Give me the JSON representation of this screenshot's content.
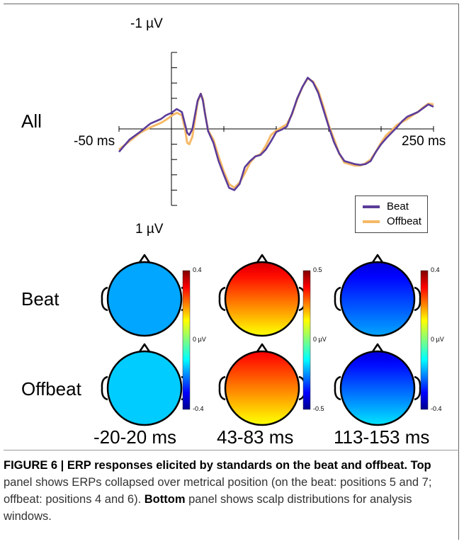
{
  "chart_data": {
    "type": "line",
    "panel_label": "All",
    "xlabels": {
      "min": "-50 ms",
      "max": "250 ms"
    },
    "ylabels": {
      "top": "-1 µV",
      "bottom": "1 µV"
    },
    "xlim": [
      -50,
      250
    ],
    "ylim": [
      -1,
      1
    ],
    "y_inverted": true,
    "legend_position": "bottom-right",
    "series": [
      {
        "name": "Beat",
        "color": "#5b3c99",
        "x": [
          -50,
          -40,
          -30,
          -20,
          -10,
          -5,
          0,
          5,
          10,
          13,
          15,
          17,
          20,
          25,
          28,
          30,
          32,
          35,
          40,
          45,
          50,
          55,
          60,
          65,
          70,
          75,
          80,
          85,
          90,
          95,
          100,
          105,
          110,
          115,
          120,
          125,
          130,
          135,
          140,
          145,
          150,
          155,
          160,
          165,
          170,
          175,
          180,
          185,
          190,
          195,
          200,
          205,
          210,
          215,
          220,
          225,
          230,
          235,
          240,
          245,
          250
        ],
        "y": [
          0.3,
          0.14,
          0.04,
          -0.07,
          -0.13,
          -0.18,
          -0.21,
          -0.26,
          -0.22,
          -0.06,
          0.05,
          0.08,
          0.0,
          -0.37,
          -0.46,
          -0.37,
          -0.2,
          0.03,
          0.18,
          0.42,
          0.6,
          0.77,
          0.8,
          0.72,
          0.5,
          0.42,
          0.36,
          0.34,
          0.27,
          0.16,
          0.04,
          0.01,
          -0.03,
          -0.2,
          -0.4,
          -0.55,
          -0.67,
          -0.61,
          -0.47,
          -0.25,
          -0.03,
          0.17,
          0.32,
          0.42,
          0.44,
          0.46,
          0.47,
          0.46,
          0.42,
          0.3,
          0.2,
          0.12,
          0.05,
          -0.02,
          -0.1,
          -0.16,
          -0.19,
          -0.22,
          -0.27,
          -0.32,
          -0.29
        ]
      },
      {
        "name": "Offbeat",
        "color": "#f6b967",
        "x": [
          -50,
          -40,
          -30,
          -20,
          -10,
          -5,
          0,
          5,
          10,
          13,
          15,
          17,
          20,
          25,
          28,
          30,
          32,
          35,
          40,
          45,
          50,
          55,
          60,
          65,
          70,
          75,
          80,
          85,
          90,
          95,
          100,
          105,
          110,
          115,
          120,
          125,
          130,
          135,
          140,
          145,
          150,
          155,
          160,
          165,
          170,
          175,
          180,
          185,
          190,
          195,
          200,
          205,
          210,
          215,
          220,
          225,
          230,
          235,
          240,
          245,
          250
        ],
        "y": [
          0.27,
          0.16,
          0.05,
          -0.02,
          -0.08,
          -0.12,
          -0.17,
          -0.21,
          -0.18,
          0.0,
          0.18,
          0.2,
          0.1,
          -0.35,
          -0.46,
          -0.39,
          -0.2,
          0.02,
          0.14,
          0.36,
          0.56,
          0.72,
          0.77,
          0.7,
          0.58,
          0.44,
          0.36,
          0.33,
          0.22,
          0.08,
          0.02,
          -0.02,
          -0.06,
          -0.19,
          -0.39,
          -0.55,
          -0.66,
          -0.62,
          -0.5,
          -0.29,
          -0.05,
          0.13,
          0.32,
          0.44,
          0.46,
          0.48,
          0.48,
          0.45,
          0.4,
          0.3,
          0.18,
          0.08,
          0.02,
          -0.05,
          -0.09,
          -0.13,
          -0.18,
          -0.22,
          -0.28,
          -0.33,
          -0.32
        ]
      }
    ]
  },
  "topomaps": {
    "row_labels": [
      "Beat",
      "Offbeat"
    ],
    "window_labels": [
      "-20-20 ms",
      "43-83 ms",
      "113-153 ms"
    ],
    "colorbars": [
      {
        "max": "0.4",
        "mid": "0 µV",
        "min": "-0.4"
      },
      {
        "max": "0.5",
        "mid": "0 µV",
        "min": "-0.5"
      },
      {
        "max": "0.4",
        "mid": "0 µV",
        "min": "-0.4"
      }
    ],
    "maps": [
      {
        "row": "Beat",
        "window": "-20-20 ms",
        "front_level": -0.17,
        "back_level": -0.17
      },
      {
        "row": "Beat",
        "window": "43-83 ms",
        "front_level": 0.42,
        "back_level": 0.12
      },
      {
        "row": "Beat",
        "window": "113-153 ms",
        "front_level": -0.33,
        "back_level": -0.17
      },
      {
        "row": "Offbeat",
        "window": "-20-20 ms",
        "front_level": -0.14,
        "back_level": -0.14
      },
      {
        "row": "Offbeat",
        "window": "43-83 ms",
        "front_level": 0.38,
        "back_level": 0.12
      },
      {
        "row": "Offbeat",
        "window": "113-153 ms",
        "front_level": -0.33,
        "back_level": -0.12
      }
    ]
  },
  "caption": {
    "label": "FIGURE 6 | ERP responses elicited by standards on the beat and offbeat.",
    "top_word": "Top",
    "top_text": " panel shows ERPs collapsed over metrical position (on the beat: positions 5 and 7; offbeat: positions 4 and 6). ",
    "bottom_word": "Bottom",
    "bottom_text": " panel shows scalp distributions for analysis windows."
  }
}
